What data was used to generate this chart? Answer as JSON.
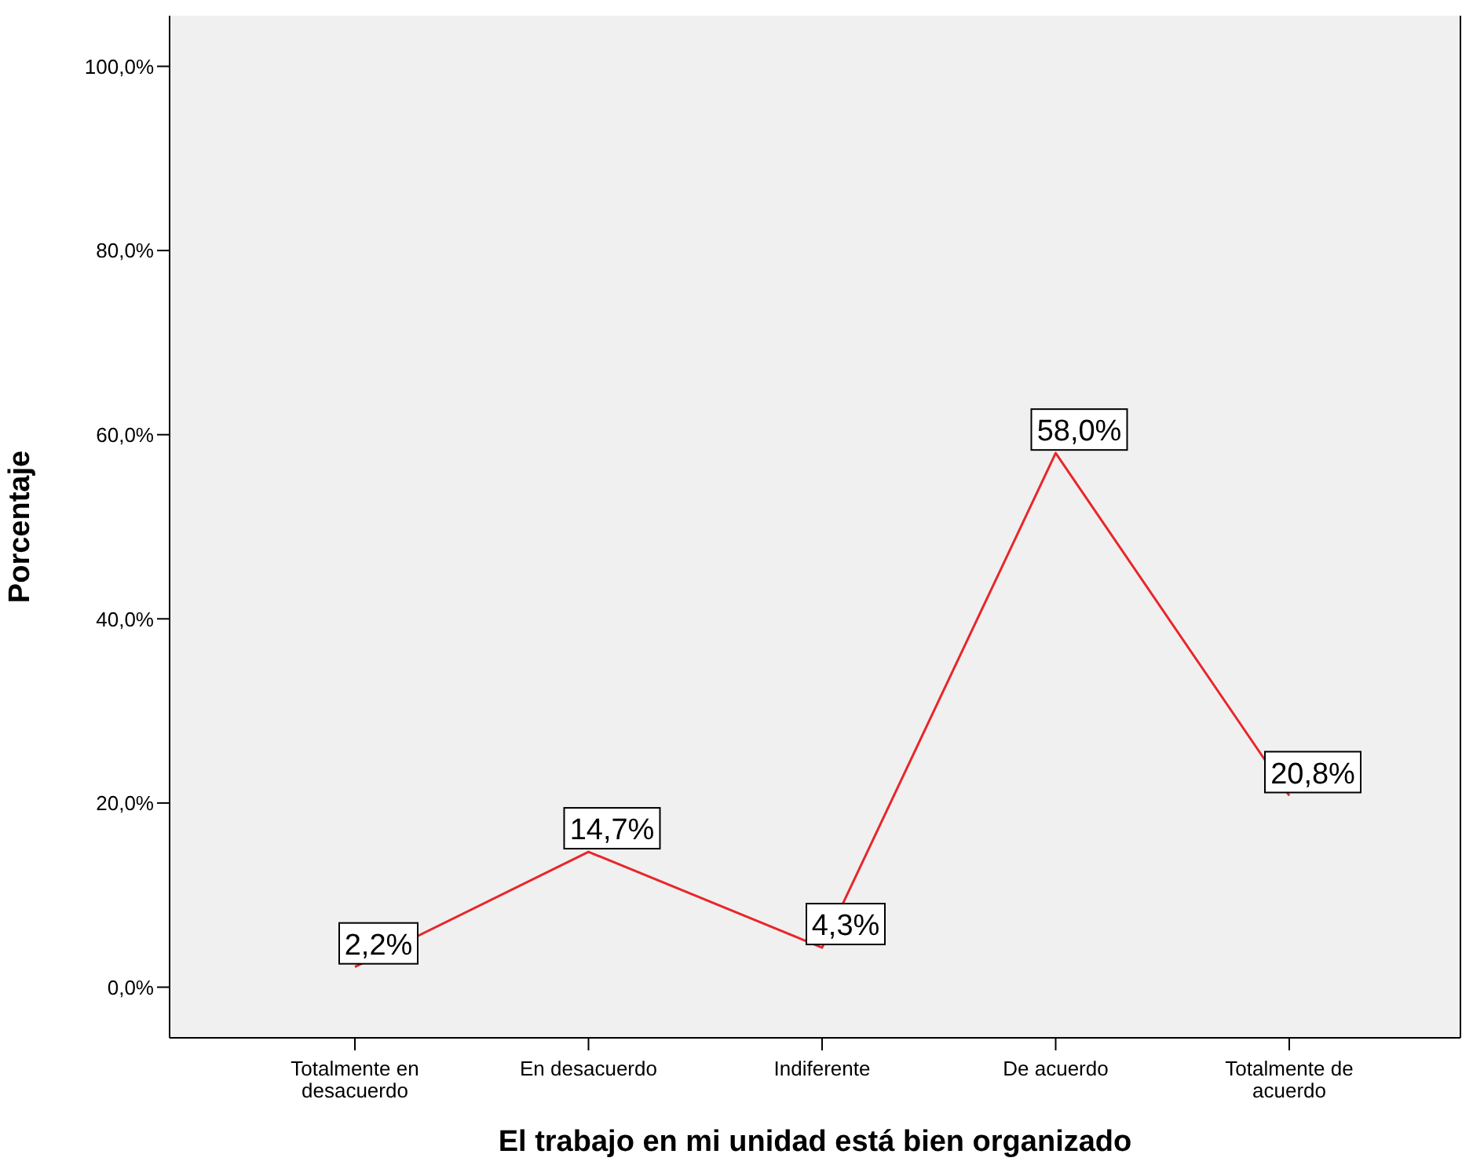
{
  "chart_data": {
    "type": "line",
    "xlabel": "El trabajo en mi unidad está bien organizado",
    "ylabel": "Porcentaje",
    "categories": [
      "Totalmente en desacuerdo",
      "En desacuerdo",
      "Indiferente",
      "De acuerdo",
      "Totalmente de acuerdo"
    ],
    "series": [
      {
        "color": "#e8262a",
        "values": [
          2.2,
          14.7,
          4.3,
          58.0,
          20.8
        ],
        "value_labels": [
          "2,2%",
          "14,7%",
          "4,3%",
          "58,0%",
          "20,8%"
        ]
      }
    ],
    "ylim": [
      -5.5,
      105.5
    ],
    "yticks": [
      {
        "value": 0,
        "label": "0,0%"
      },
      {
        "value": 20,
        "label": "20,0%"
      },
      {
        "value": 40,
        "label": "40,0%"
      },
      {
        "value": 60,
        "label": "60,0%"
      },
      {
        "value": 80,
        "label": "80,0%"
      },
      {
        "value": 100,
        "label": "100,0%"
      }
    ],
    "marker": "none",
    "line_style": "solid",
    "legend": false
  }
}
